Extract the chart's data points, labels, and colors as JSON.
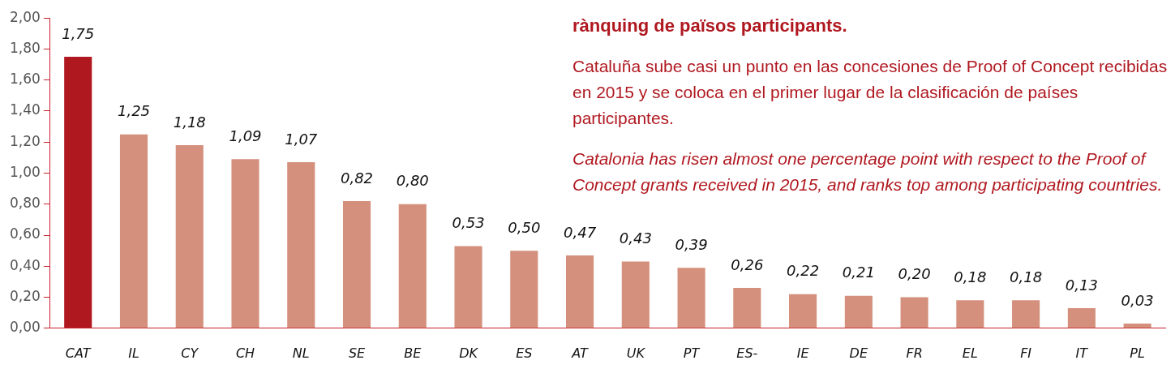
{
  "chart_data": {
    "type": "bar",
    "categories": [
      "CAT",
      "IL",
      "CY",
      "CH",
      "NL",
      "SE",
      "BE",
      "DK",
      "ES",
      "AT",
      "UK",
      "PT",
      "ES-",
      "IE",
      "DE",
      "FR",
      "EL",
      "FI",
      "IT",
      "PL"
    ],
    "values": [
      1.75,
      1.25,
      1.18,
      1.09,
      1.07,
      0.82,
      0.8,
      0.53,
      0.5,
      0.47,
      0.43,
      0.39,
      0.26,
      0.22,
      0.21,
      0.2,
      0.18,
      0.18,
      0.13,
      0.03
    ],
    "colors": [
      "#b01820",
      "#d4907c",
      "#d4907c",
      "#d4907c",
      "#d4907c",
      "#d4907c",
      "#d4907c",
      "#d4907c",
      "#d4907c",
      "#d4907c",
      "#d4907c",
      "#d4907c",
      "#d4907c",
      "#d4907c",
      "#d4907c",
      "#d4907c",
      "#d4907c",
      "#d4907c",
      "#d4907c",
      "#d4907c"
    ],
    "value_labels": [
      "1,75",
      "1,25",
      "1,18",
      "1,09",
      "1,07",
      "0,82",
      "0,80",
      "0,53",
      "0,50",
      "0,47",
      "0,43",
      "0,39",
      "0,26",
      "0,22",
      "0,21",
      "0,20",
      "0,18",
      "0,18",
      "0,13",
      "0,03"
    ],
    "ylim": [
      0,
      2
    ],
    "yticks": [
      {
        "value": 0,
        "label": "0,00"
      },
      {
        "value": 0.2,
        "label": "0,20"
      },
      {
        "value": 0.4,
        "label": "0,40"
      },
      {
        "value": 0.6,
        "label": "0,60"
      },
      {
        "value": 0.8,
        "label": "0,80"
      },
      {
        "value": 1,
        "label": "1,00"
      },
      {
        "value": 1.2,
        "label": "1,20"
      },
      {
        "value": 1.4,
        "label": "1,40"
      },
      {
        "value": 1.6,
        "label": "1,60"
      },
      {
        "value": 1.8,
        "label": "1,80"
      },
      {
        "value": 2,
        "label": "2,00"
      }
    ],
    "grid": false,
    "annotations": [
      "rànquing de països participants.",
      "Cataluña sube casi un punto en las concesiones de Proof of Concept recibidas en 2015 y se coloca en el primer lugar de la clasificación de países participantes.",
      "Catalonia has risen almost one percentage point with respect to the Proof of Concept grants received in 2015, and ranks top among participating countries."
    ]
  }
}
